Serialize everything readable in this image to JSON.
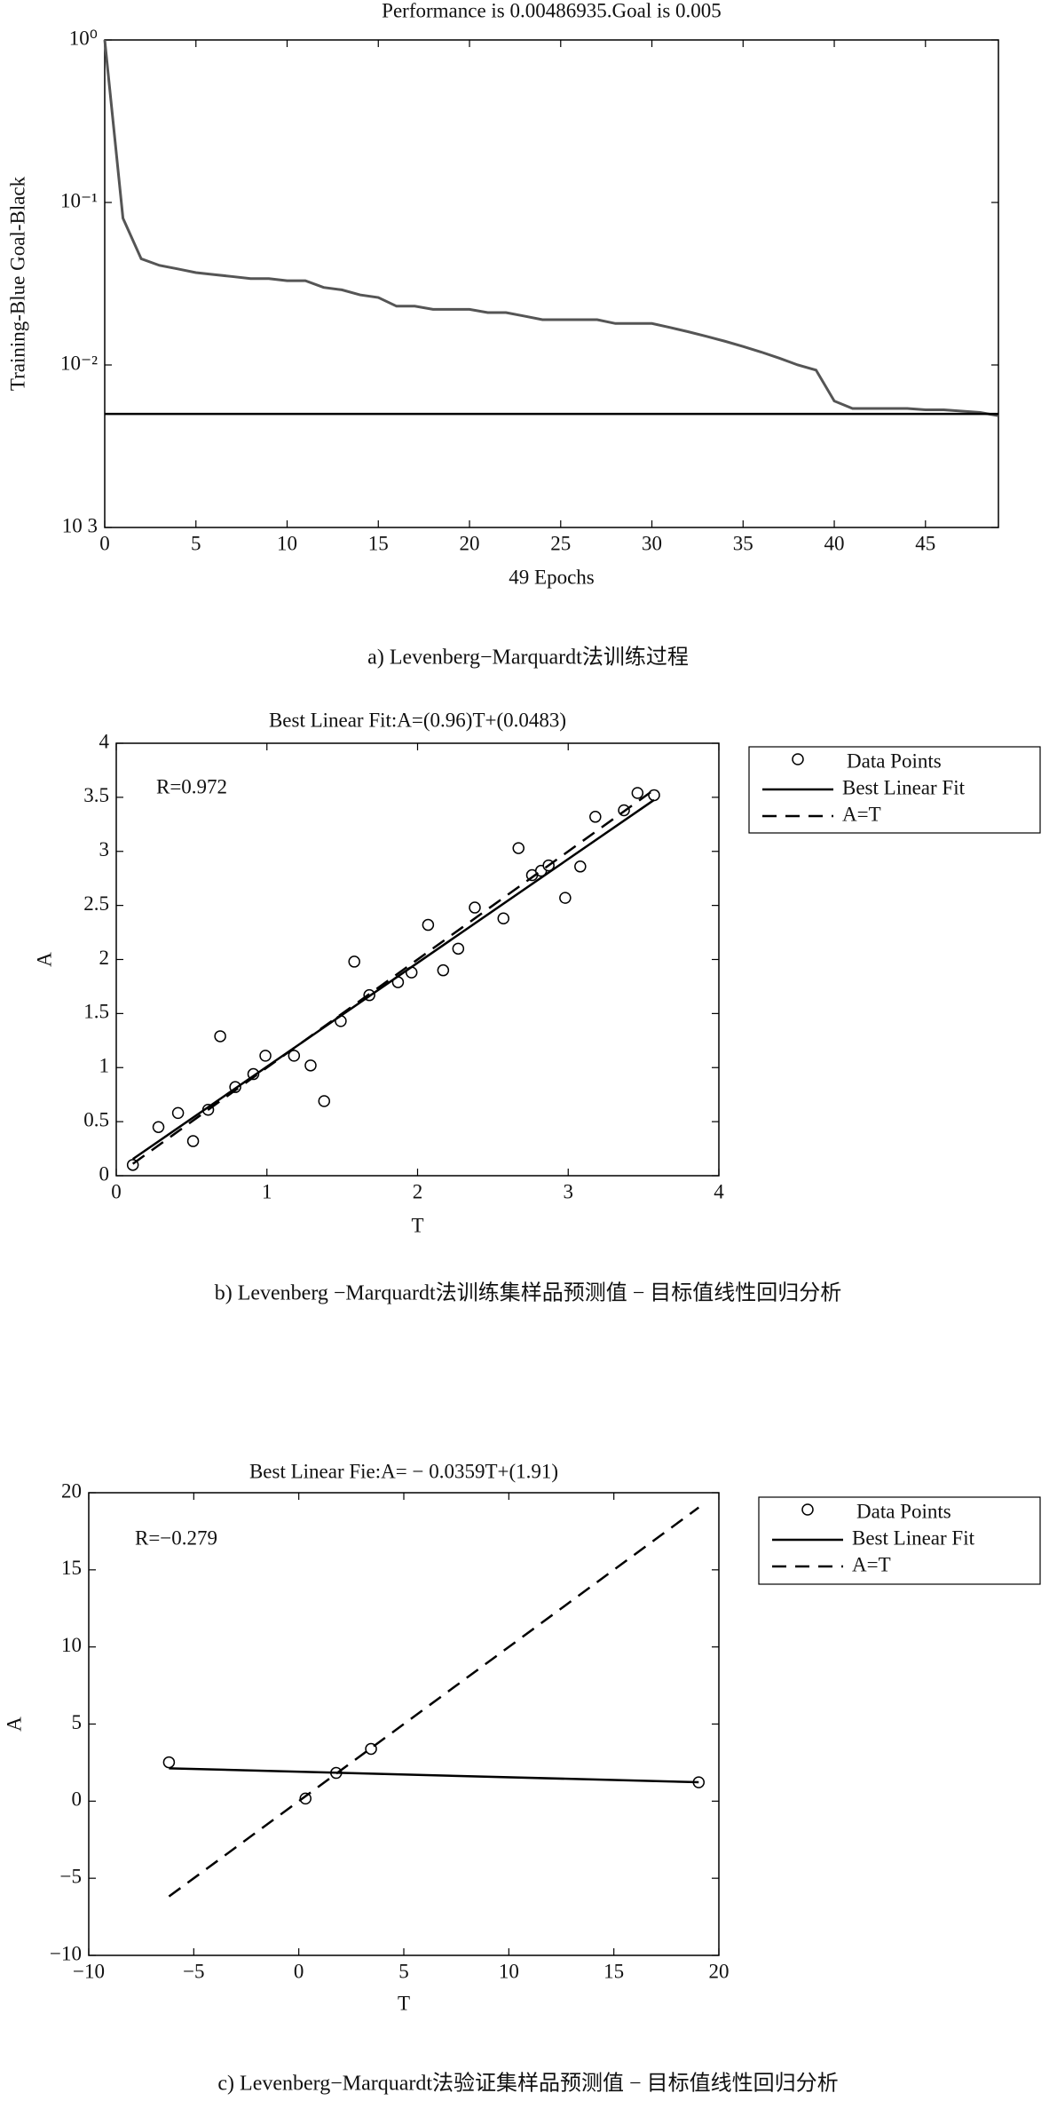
{
  "chart_data": [
    {
      "type": "line",
      "title": "Performance is 0.00486935.Goal is 0.005",
      "x_label": "49 Epochs",
      "y_label": "Training-Blue Goal-Black",
      "caption": "a) Levenberg−Marquardt法训练过程",
      "yscale": "log",
      "xlim": [
        0,
        49
      ],
      "xticks": [
        0,
        5,
        10,
        15,
        20,
        25,
        30,
        35,
        40,
        45
      ],
      "ylim": [
        0.001,
        1
      ],
      "yticks": [
        {
          "value": 1,
          "label": "10⁰"
        },
        {
          "value": 0.1,
          "label": "10⁻¹"
        },
        {
          "value": 0.01,
          "label": "10⁻²"
        },
        {
          "value": 0.001,
          "label": "10 3"
        }
      ],
      "series": [
        {
          "name": "Training",
          "color": "#555555",
          "style": "solid",
          "x": [
            0,
            1,
            2,
            3,
            4,
            5,
            6,
            7,
            8,
            9,
            10,
            11,
            12,
            13,
            14,
            15,
            16,
            17,
            18,
            19,
            20,
            21,
            22,
            23,
            24,
            25,
            26,
            27,
            28,
            29,
            30,
            31,
            32,
            33,
            34,
            35,
            36,
            37,
            38,
            39,
            40,
            41,
            42,
            43,
            44,
            45,
            46,
            47,
            48,
            49
          ],
          "values": [
            1.0,
            0.08,
            0.045,
            0.041,
            0.039,
            0.037,
            0.036,
            0.035,
            0.034,
            0.034,
            0.033,
            0.033,
            0.03,
            0.029,
            0.027,
            0.026,
            0.023,
            0.023,
            0.022,
            0.022,
            0.022,
            0.021,
            0.021,
            0.02,
            0.019,
            0.019,
            0.019,
            0.019,
            0.018,
            0.018,
            0.018,
            0.017,
            0.016,
            0.015,
            0.014,
            0.013,
            0.012,
            0.011,
            0.01,
            0.0093,
            0.006,
            0.0054,
            0.0054,
            0.0054,
            0.0054,
            0.0053,
            0.0053,
            0.0052,
            0.0051,
            0.00487
          ]
        },
        {
          "name": "Goal",
          "color": "#000000",
          "style": "solid",
          "x": [
            0,
            49
          ],
          "values": [
            0.005,
            0.005
          ]
        }
      ]
    },
    {
      "type": "scatter",
      "title": "Best Linear Fit:A=(0.96)T+(0.0483)",
      "x_label": "T",
      "y_label": "A",
      "annotation": "R=0.972",
      "caption": "b) Levenberg −Marquardt法训练集样品预测值 − 目标值线性回归分析",
      "xlim": [
        0,
        4
      ],
      "xticks": [
        0,
        1,
        2,
        3,
        4
      ],
      "ylim": [
        0,
        4
      ],
      "yticks": [
        0,
        0.5,
        1,
        1.5,
        2,
        2.5,
        3,
        3.5,
        4
      ],
      "legend": "outside-right",
      "series": [
        {
          "name": "Data Points",
          "color": "#000000",
          "style": "marker",
          "x": [
            0.11,
            0.28,
            0.41,
            0.51,
            0.61,
            0.69,
            0.79,
            0.91,
            0.99,
            1.18,
            1.29,
            1.38,
            1.49,
            1.58,
            1.68,
            1.87,
            1.96,
            2.07,
            2.17,
            2.27,
            2.38,
            2.57,
            2.67,
            2.76,
            2.82,
            2.87,
            2.98,
            3.08,
            3.18,
            3.37,
            3.46,
            3.57
          ],
          "values": [
            0.1,
            0.45,
            0.58,
            0.32,
            0.61,
            1.29,
            0.82,
            0.94,
            1.11,
            1.11,
            1.02,
            0.69,
            1.43,
            1.98,
            1.67,
            1.79,
            1.88,
            2.32,
            1.9,
            2.1,
            2.48,
            2.38,
            3.03,
            2.78,
            2.82,
            2.87,
            2.57,
            2.86,
            3.32,
            3.38,
            3.54,
            3.52
          ]
        },
        {
          "name": "Best Linear Fit",
          "color": "#000000",
          "style": "solid",
          "x": [
            0.11,
            3.57
          ],
          "values": [
            0.154,
            3.476
          ]
        },
        {
          "name": "A=T",
          "color": "#000000",
          "style": "dashed",
          "x": [
            0.11,
            3.57
          ],
          "values": [
            0.11,
            3.57
          ]
        }
      ]
    },
    {
      "type": "scatter",
      "title": "Best Linear Fie:A= − 0.0359T+(1.91)",
      "x_label": "T",
      "y_label": "A",
      "annotation": "R=−0.279",
      "caption": "c) Levenberg−Marquardt法验证集样品预测值 − 目标值线性回归分析",
      "xlim": [
        -10,
        20
      ],
      "xticks": [
        {
          "value": -10,
          "label": "−10"
        },
        {
          "value": -5,
          "label": "−5"
        },
        0,
        5,
        10,
        15,
        20
      ],
      "ylim": [
        -10,
        20
      ],
      "yticks": [
        {
          "value": -10,
          "label": "−10"
        },
        {
          "value": -5,
          "label": "−5"
        },
        0,
        5,
        10,
        15,
        20
      ],
      "legend": "outside-right",
      "series": [
        {
          "name": "Data Points",
          "color": "#000000",
          "style": "marker",
          "x": [
            -6.18,
            0.32,
            1.78,
            3.44,
            19.04
          ],
          "values": [
            2.52,
            0.17,
            1.83,
            3.39,
            1.22
          ]
        },
        {
          "name": "Best Linear Fit",
          "color": "#000000",
          "style": "solid",
          "x": [
            -6.18,
            19.04
          ],
          "values": [
            2.13,
            1.226
          ]
        },
        {
          "name": "A=T",
          "color": "#000000",
          "style": "dashed",
          "x": [
            -6.18,
            19.04
          ],
          "values": [
            -6.18,
            19.04
          ]
        }
      ]
    }
  ]
}
